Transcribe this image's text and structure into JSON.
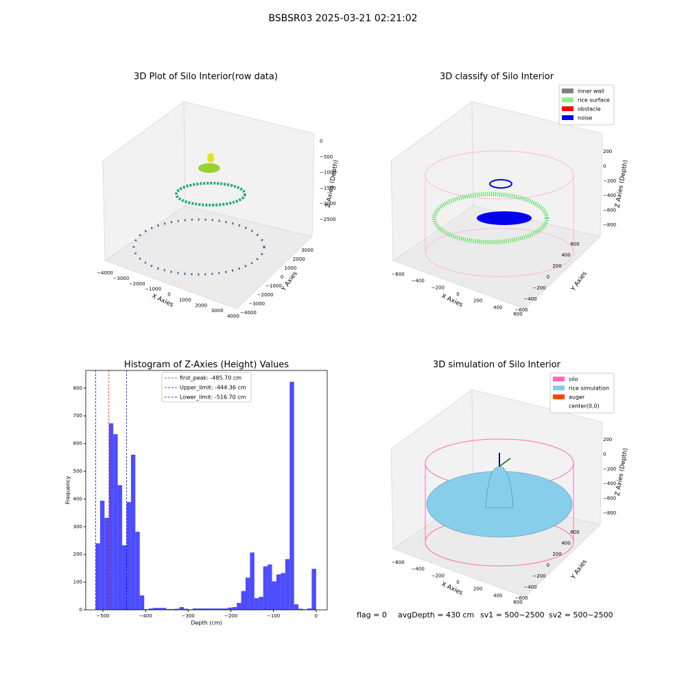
{
  "title": "BSBSR03 2025-03-21 02:21:02",
  "chart_data": [
    {
      "type": "scatter3d",
      "title": "3D Plot of Silo Interior(row data)",
      "xlabel": "X Axies",
      "ylabel": "Y Axies",
      "zlabel": "Z Axies (Depth)",
      "xticks": [
        {
          "value": -4000,
          "label": "−4000"
        },
        {
          "value": -3000,
          "label": "−3000"
        },
        {
          "value": -2000,
          "label": "−2000"
        },
        {
          "value": -1000,
          "label": "−1000"
        },
        0,
        1000,
        2000,
        3000,
        4000
      ],
      "yticks": [
        {
          "value": -4000,
          "label": "−4000"
        },
        {
          "value": -3000,
          "label": "−3000"
        },
        {
          "value": -2000,
          "label": "−2000"
        },
        {
          "value": -1000,
          "label": "−1000"
        },
        0,
        1000,
        2000,
        3000
      ],
      "zticks": [
        0,
        {
          "value": -500,
          "label": "−500"
        },
        {
          "value": -1000,
          "label": "−1000"
        },
        {
          "value": -1500,
          "label": "−1500"
        },
        {
          "value": -2000,
          "label": "−2000"
        },
        {
          "value": -2500,
          "label": "−2500"
        }
      ]
    },
    {
      "type": "scatter3d",
      "title": "3D classify of Silo Interior",
      "xlabel": "X Axies",
      "ylabel": "Y Axies",
      "zlabel": "Z Axies (Depth)",
      "xticks": [
        {
          "value": -600,
          "label": "−600"
        },
        {
          "value": -400,
          "label": "−400"
        },
        {
          "value": -200,
          "label": "−200"
        },
        0,
        200,
        400,
        600
      ],
      "yticks": [
        {
          "value": -600,
          "label": "−600"
        },
        {
          "value": -400,
          "label": "−400"
        },
        {
          "value": -200,
          "label": "−200"
        },
        0,
        200,
        400,
        600
      ],
      "zticks": [
        200,
        0,
        {
          "value": -200,
          "label": "−200"
        },
        {
          "value": -400,
          "label": "−400"
        },
        {
          "value": -600,
          "label": "−600"
        },
        {
          "value": -800,
          "label": "−800"
        }
      ],
      "legend": [
        {
          "name": "inner wall",
          "color": "#808080"
        },
        {
          "name": "rice surface",
          "color": "#90ee90"
        },
        {
          "name": "obstacle",
          "color": "#ff0000"
        },
        {
          "name": "noise",
          "color": "#0000ff"
        }
      ]
    },
    {
      "type": "histogram",
      "title": "Histogram of Z-Axies (Height) Values",
      "xlabel": "Depth (cm)",
      "ylabel": "Frequency",
      "color": "#4d4dff",
      "bins": [
        -516.7,
        -506.37,
        -496.03,
        -485.7,
        -475.37,
        -465.03,
        -454.7,
        -444.37,
        -434.03,
        -423.7,
        -413.37,
        -403.03,
        -392.7,
        -382.37,
        -372.03,
        -361.7,
        -351.37,
        -341.03,
        -330.7,
        -320.37,
        -310.03,
        -299.7,
        -289.37,
        -279.03,
        -268.7,
        -258.37,
        -248.03,
        -237.7,
        -227.37,
        -217.03,
        -206.7,
        -196.37,
        -186.03,
        -175.7,
        -165.37,
        -155.03,
        -144.7,
        -134.37,
        -124.03,
        -113.7,
        -103.37,
        -93.03,
        -82.7,
        -72.37,
        -62.03,
        -51.7,
        -41.37,
        -31.03,
        -20.7,
        -10.37,
        0
      ],
      "values": [
        240,
        394,
        332,
        673,
        634,
        450,
        233,
        389,
        560,
        282,
        52,
        2,
        5,
        7,
        7,
        7,
        3,
        3,
        4,
        10,
        4,
        2,
        5,
        5,
        5,
        5,
        5,
        5,
        5,
        5,
        8,
        10,
        25,
        68,
        116,
        207,
        42,
        47,
        157,
        164,
        103,
        128,
        133,
        183,
        823,
        20,
        4,
        2,
        5,
        148
      ],
      "xlim": [
        -540,
        26
      ],
      "ylim": [
        0,
        864
      ],
      "xticks": [
        {
          "value": -500,
          "label": "−500"
        },
        {
          "value": -400,
          "label": "−400"
        },
        {
          "value": -300,
          "label": "−300"
        },
        {
          "value": -200,
          "label": "−200"
        },
        {
          "value": -100,
          "label": "−100"
        },
        0
      ],
      "yticks": [
        0,
        100,
        200,
        300,
        400,
        500,
        600,
        700,
        800
      ],
      "vlines": [
        {
          "value": -485.7,
          "label": "first_peak: -485.70 cm",
          "color": "#ff0000"
        },
        {
          "value": -444.36,
          "label": "Upper_limit: -444.36 cm",
          "color": "#0000ff"
        },
        {
          "value": -516.7,
          "label": "Lower_limit: -516.70 cm",
          "color": "#0000ff"
        }
      ]
    },
    {
      "type": "scatter3d",
      "title": "3D simulation of Silo Interior",
      "xlabel": "X Axies",
      "ylabel": "Y Axies",
      "zlabel": "Z Axies (Depth)",
      "xticks": [
        {
          "value": -600,
          "label": "−600"
        },
        {
          "value": -400,
          "label": "−400"
        },
        {
          "value": -200,
          "label": "−200"
        },
        0,
        200,
        400,
        600
      ],
      "yticks": [
        {
          "value": -600,
          "label": "−600"
        },
        {
          "value": -400,
          "label": "−400"
        },
        {
          "value": -200,
          "label": "−200"
        },
        0,
        200,
        400,
        600
      ],
      "zticks": [
        200,
        0,
        {
          "value": -200,
          "label": "−200"
        },
        {
          "value": -400,
          "label": "−400"
        },
        {
          "value": -600,
          "label": "−600"
        },
        {
          "value": -800,
          "label": "−800"
        }
      ],
      "legend": [
        {
          "name": "silo",
          "color": "#ff69b4"
        },
        {
          "name": "rice simulation",
          "color": "#87ceeb"
        },
        {
          "name": "auger",
          "color": "#ff4500"
        },
        {
          "name": "center(0,0)",
          "color": null
        }
      ]
    }
  ],
  "footer": [
    "flag = 0",
    "avgDepth = 430 cm",
    "sv1 = 500~2500",
    "sv2 = 500~2500"
  ]
}
